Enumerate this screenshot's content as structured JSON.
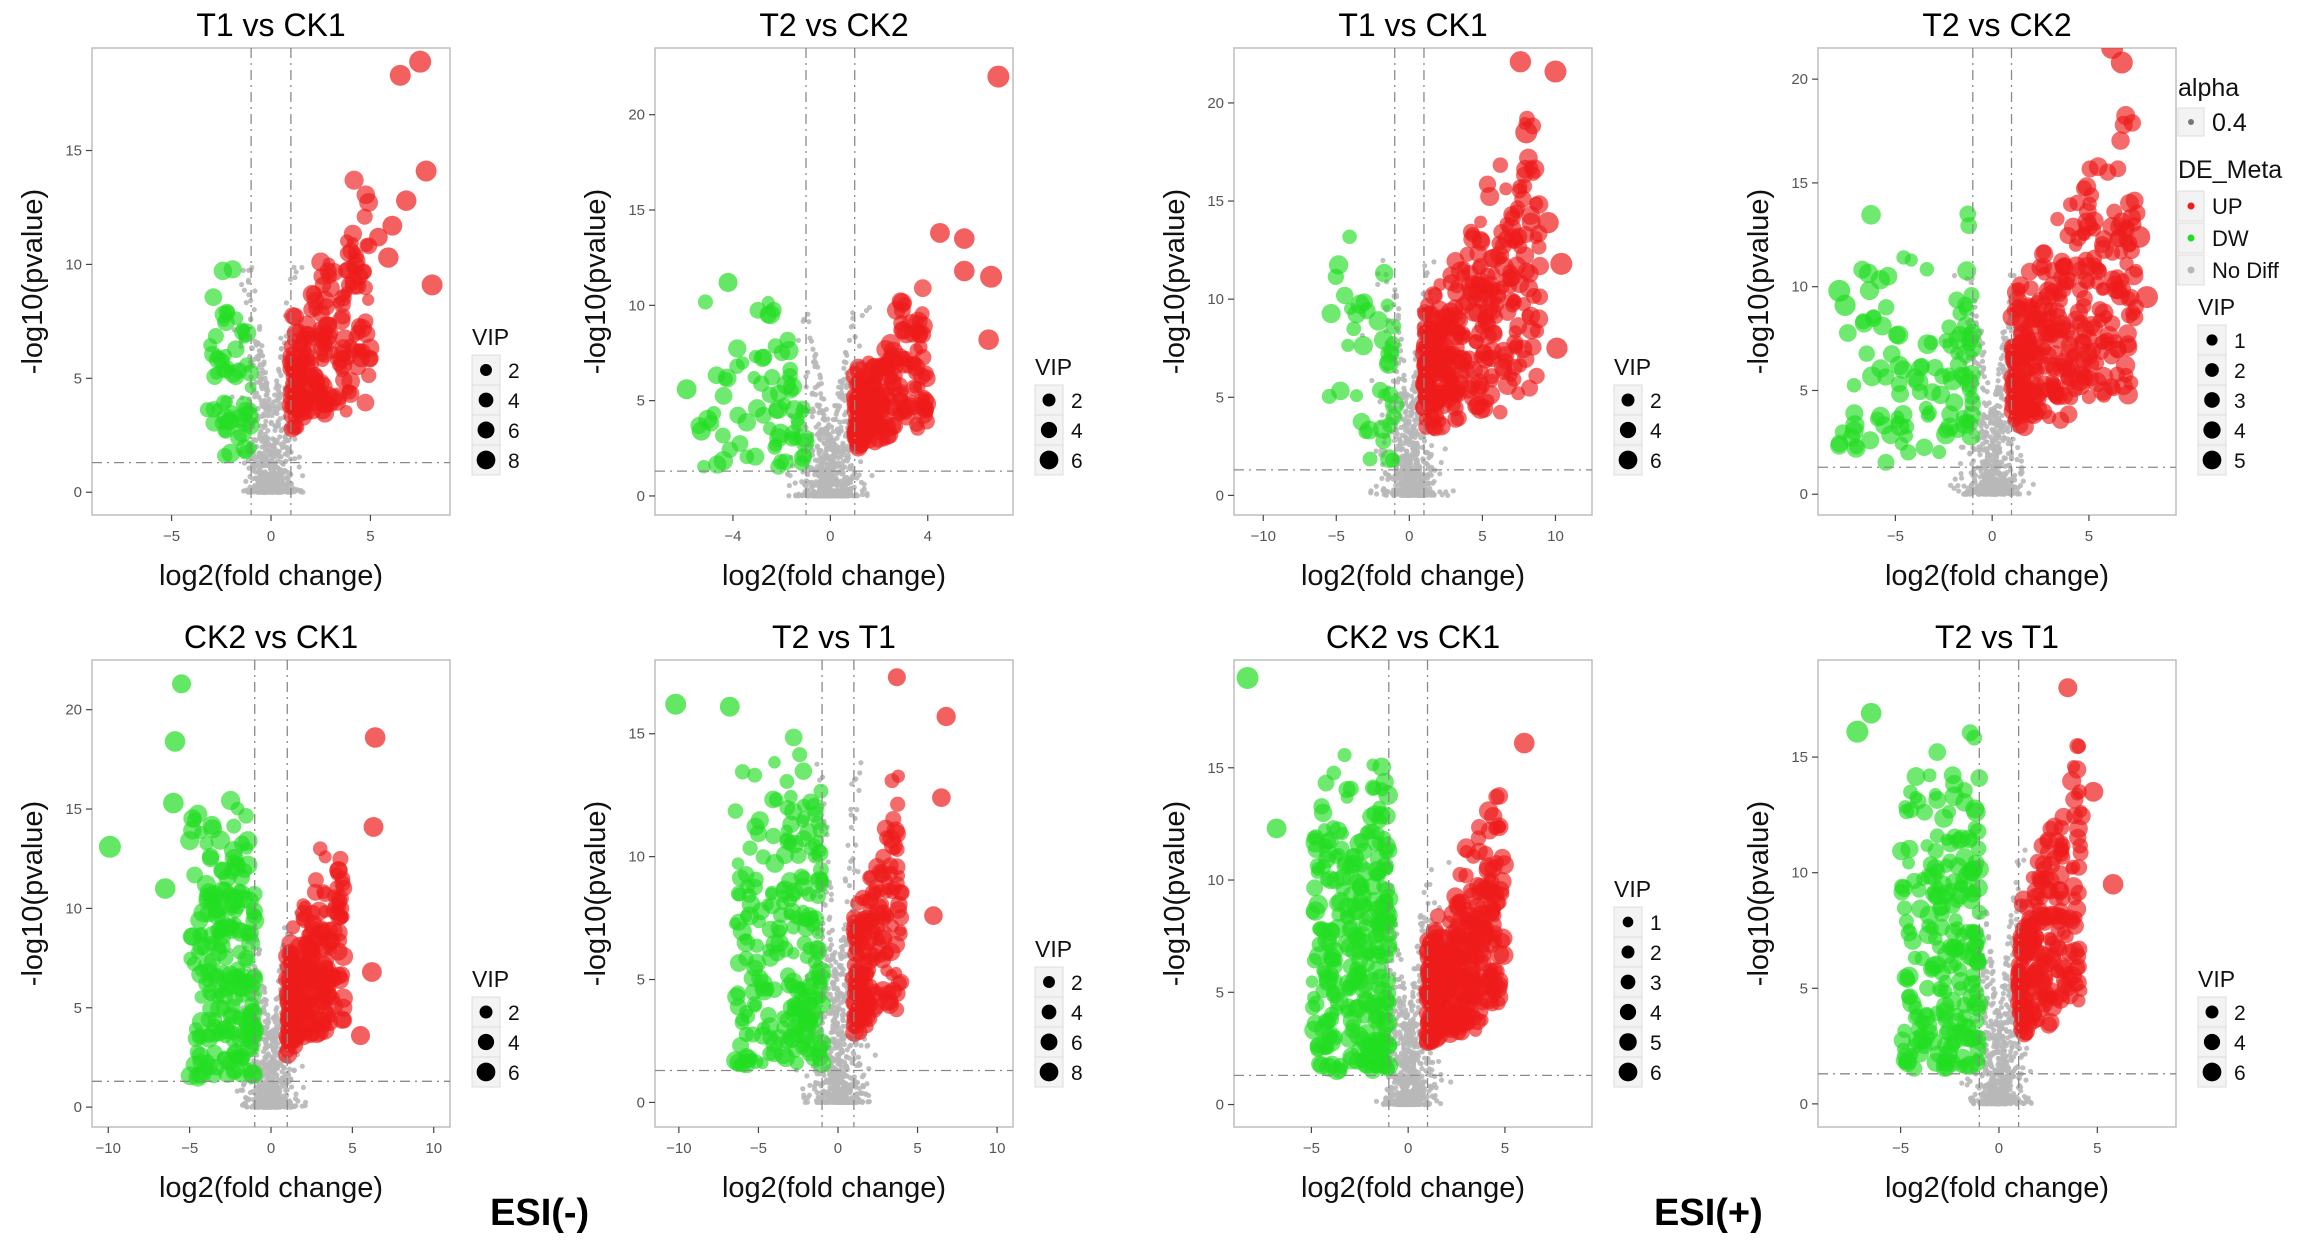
{
  "colors": {
    "up": "#ee1c1c",
    "down": "#22dd22",
    "nodiff": "#b8b8b8",
    "panel_bg": "#ffffff",
    "frame": "#bdbdbd",
    "axis_text": "#555555"
  },
  "legend": {
    "alpha_title": "alpha",
    "alpha_value": "0.4",
    "de_title": "DE_Meta",
    "up": "UP",
    "dw": "DW",
    "nodiff": "No Diff"
  },
  "esi_labels": {
    "neg": "ESI(-)",
    "pos": "ESI(+)"
  },
  "chart_data": [
    {
      "id": "neg_t1_ck1",
      "type": "scatter",
      "title": "T1 vs CK1",
      "xlabel": "log2(fold change)",
      "ylabel": "-log10(pvalue)",
      "xlim": [
        -9,
        9
      ],
      "ylim": [
        -1,
        19.5
      ],
      "xticks": [
        -5,
        0,
        5
      ],
      "yticks": [
        0,
        5,
        10,
        15
      ],
      "pthreshold": 1.3,
      "fcthreshold": 1,
      "vip_legend": {
        "title": "VIP",
        "values": [
          2,
          4,
          6,
          8
        ]
      },
      "vipmax": 8,
      "dist": {
        "seed": 11,
        "n_gray": 650,
        "gray_sx": 0.65,
        "gray_ymax": 10,
        "n_up": 210,
        "up_xr": [
          1,
          5
        ],
        "up_ymax": 15.5,
        "n_down": 60,
        "down_xr": [
          -3.2,
          -1
        ],
        "down_ymax": 10.5
      },
      "highlights": [
        {
          "x": 7.5,
          "y": 18.9,
          "vip": 8
        },
        {
          "x": 6.5,
          "y": 18.3,
          "vip": 7
        },
        {
          "x": 7.8,
          "y": 14.1,
          "vip": 7
        },
        {
          "x": 6.8,
          "y": 12.8,
          "vip": 6.5
        },
        {
          "x": 6.1,
          "y": 11.7,
          "vip": 6
        },
        {
          "x": 5.9,
          "y": 10.3,
          "vip": 6.5
        },
        {
          "x": 8.1,
          "y": 9.1,
          "vip": 7
        },
        {
          "x": 5.4,
          "y": 11.2,
          "vip": 5
        }
      ]
    },
    {
      "id": "neg_t2_ck2",
      "type": "scatter",
      "title": "T2 vs CK2",
      "xlabel": "log2(fold change)",
      "ylabel": "-log10(pvalue)",
      "xlim": [
        -7.2,
        7.5
      ],
      "ylim": [
        -1,
        23.5
      ],
      "xticks": [
        -4,
        0,
        4
      ],
      "yticks": [
        0,
        5,
        10,
        15,
        20
      ],
      "pthreshold": 1.3,
      "fcthreshold": 1,
      "vip_legend": {
        "title": "VIP",
        "values": [
          2,
          4,
          6
        ]
      },
      "vipmax": 6,
      "dist": {
        "seed": 22,
        "n_gray": 650,
        "gray_sx": 0.6,
        "gray_ymax": 10,
        "n_up": 230,
        "up_xr": [
          1,
          4
        ],
        "up_ymax": 13,
        "n_down": 70,
        "down_xr": [
          -5.5,
          -1
        ],
        "down_ymax": 11
      },
      "highlights": [
        {
          "x": 6.9,
          "y": 22,
          "vip": 6
        },
        {
          "x": 6.6,
          "y": 11.5,
          "vip": 6
        },
        {
          "x": 5.5,
          "y": 11.8,
          "vip": 5
        },
        {
          "x": 6.5,
          "y": 8.2,
          "vip": 5
        },
        {
          "x": 5.5,
          "y": 13.5,
          "vip": 5
        },
        {
          "x": 4.5,
          "y": 13.8,
          "vip": 4.5
        },
        {
          "x": -5.9,
          "y": 5.6,
          "vip": 4.5
        },
        {
          "x": -5.3,
          "y": 3.4,
          "vip": 4
        },
        {
          "x": -4.2,
          "y": 11.2,
          "vip": 4
        }
      ]
    },
    {
      "id": "pos_t1_ck1",
      "type": "scatter",
      "title": "T1 vs CK1",
      "xlabel": "log2(fold change)",
      "ylabel": "-log10(pvalue)",
      "xlim": [
        -12,
        12.5
      ],
      "ylim": [
        -1,
        22.8
      ],
      "xticks": [
        -10,
        -5,
        0,
        5,
        10
      ],
      "yticks": [
        0,
        5,
        10,
        15,
        20
      ],
      "pthreshold": 1.3,
      "fcthreshold": 1,
      "vip_legend": {
        "title": "VIP",
        "values": [
          2,
          4,
          6
        ]
      },
      "vipmax": 6,
      "dist": {
        "seed": 33,
        "n_gray": 650,
        "gray_sx": 0.9,
        "gray_ymax": 12,
        "n_up": 330,
        "up_xr": [
          1,
          9
        ],
        "up_ymax": 22,
        "n_down": 40,
        "down_xr": [
          -5.5,
          -1
        ],
        "down_ymax": 13.5
      },
      "highlights": [
        {
          "x": 10,
          "y": 21.6,
          "vip": 6
        },
        {
          "x": 9.5,
          "y": 13.9,
          "vip": 5.5
        },
        {
          "x": 10.4,
          "y": 11.8,
          "vip": 6
        },
        {
          "x": 10.1,
          "y": 7.5,
          "vip": 5.5
        },
        {
          "x": 7.6,
          "y": 22.1,
          "vip": 5.5
        },
        {
          "x": 8,
          "y": 18.5,
          "vip": 6
        }
      ]
    },
    {
      "id": "pos_t2_ck2",
      "type": "scatter",
      "title": "T2 vs CK2",
      "xlabel": "log2(fold change)",
      "ylabel": "-log10(pvalue)",
      "xlim": [
        -9,
        9.5
      ],
      "ylim": [
        -1,
        21.5
      ],
      "xticks": [
        -5,
        0,
        5
      ],
      "yticks": [
        0,
        5,
        10,
        15,
        20
      ],
      "pthreshold": 1.3,
      "fcthreshold": 1,
      "vip_legend": {
        "title": "VIP",
        "values": [
          1,
          2,
          3,
          4,
          5
        ]
      },
      "vipmax": 5,
      "dist": {
        "seed": 44,
        "n_gray": 650,
        "gray_sx": 0.75,
        "gray_ymax": 11,
        "n_up": 330,
        "up_xr": [
          1,
          7.5
        ],
        "up_ymax": 20.5,
        "n_down": 110,
        "down_xr": [
          -8,
          -1
        ],
        "down_ymax": 14
      },
      "highlights": [
        {
          "x": 6.2,
          "y": 21.5,
          "vip": 5
        },
        {
          "x": 6.7,
          "y": 20.8,
          "vip": 5
        },
        {
          "x": 8,
          "y": 9.5,
          "vip": 5
        },
        {
          "x": 7.6,
          "y": 12.4,
          "vip": 5
        },
        {
          "x": -7.9,
          "y": 9.8,
          "vip": 5
        },
        {
          "x": -7.6,
          "y": 9.1,
          "vip": 4.5
        }
      ]
    },
    {
      "id": "neg_ck2_ck1",
      "type": "scatter",
      "title": "CK2 vs CK1",
      "xlabel": "log2(fold change)",
      "ylabel": "-log10(pvalue)",
      "xlim": [
        -11,
        11
      ],
      "ylim": [
        -1,
        22.5
      ],
      "xticks": [
        -10,
        -5,
        0,
        5,
        10
      ],
      "yticks": [
        0,
        5,
        10,
        15,
        20
      ],
      "pthreshold": 1.3,
      "fcthreshold": 1,
      "vip_legend": {
        "title": "VIP",
        "values": [
          2,
          4,
          6
        ]
      },
      "vipmax": 6,
      "dist": {
        "seed": 55,
        "n_gray": 650,
        "gray_sx": 0.8,
        "gray_ymax": 10,
        "n_up": 240,
        "up_xr": [
          1,
          4.5
        ],
        "up_ymax": 17,
        "n_down": 220,
        "down_xr": [
          -5,
          -1
        ],
        "down_ymax": 16.5
      },
      "highlights": [
        {
          "x": -9.9,
          "y": 13.1,
          "vip": 6
        },
        {
          "x": -6.5,
          "y": 11,
          "vip": 5
        },
        {
          "x": -5.5,
          "y": 21.3,
          "vip": 4
        },
        {
          "x": -5.9,
          "y": 18.4,
          "vip": 5
        },
        {
          "x": -6,
          "y": 15.3,
          "vip": 5
        },
        {
          "x": 6.4,
          "y": 18.6,
          "vip": 5
        },
        {
          "x": 6.3,
          "y": 14.1,
          "vip": 4.5
        },
        {
          "x": 6.2,
          "y": 6.8,
          "vip": 4.5
        },
        {
          "x": 5.5,
          "y": 3.6,
          "vip": 4
        }
      ]
    },
    {
      "id": "neg_t2_t1",
      "type": "scatter",
      "title": "T2 vs T1",
      "xlabel": "log2(fold change)",
      "ylabel": "-log10(pvalue)",
      "xlim": [
        -11.5,
        11
      ],
      "ylim": [
        -1,
        18
      ],
      "xticks": [
        -10,
        -5,
        0,
        5,
        10
      ],
      "yticks": [
        0,
        5,
        10,
        15
      ],
      "pthreshold": 1.3,
      "fcthreshold": 1,
      "vip_legend": {
        "title": "VIP",
        "values": [
          2,
          4,
          6,
          8
        ]
      },
      "vipmax": 8,
      "dist": {
        "seed": 66,
        "n_gray": 700,
        "gray_sx": 0.8,
        "gray_ymax": 14,
        "n_up": 170,
        "up_xr": [
          1,
          4
        ],
        "up_ymax": 16.5,
        "n_down": 230,
        "down_xr": [
          -6.5,
          -1
        ],
        "down_ymax": 15.5
      },
      "highlights": [
        {
          "x": -10.2,
          "y": 16.2,
          "vip": 7
        },
        {
          "x": -6.8,
          "y": 16.1,
          "vip": 6
        },
        {
          "x": 6.8,
          "y": 15.7,
          "vip": 5.5
        },
        {
          "x": 6.5,
          "y": 12.4,
          "vip": 5
        },
        {
          "x": 6,
          "y": 7.6,
          "vip": 5
        },
        {
          "x": 3.7,
          "y": 17.3,
          "vip": 4.5
        }
      ]
    },
    {
      "id": "pos_ck2_ck1",
      "type": "scatter",
      "title": "CK2 vs CK1",
      "xlabel": "log2(fold change)",
      "ylabel": "-log10(pvalue)",
      "xlim": [
        -9,
        9.5
      ],
      "ylim": [
        -1,
        19.8
      ],
      "xticks": [
        -5,
        0,
        5
      ],
      "yticks": [
        0,
        5,
        10,
        15
      ],
      "pthreshold": 1.3,
      "fcthreshold": 1,
      "vip_legend": {
        "title": "VIP",
        "values": [
          1,
          2,
          3,
          4,
          5,
          6
        ]
      },
      "vipmax": 6,
      "dist": {
        "seed": 77,
        "n_gray": 700,
        "gray_sx": 0.7,
        "gray_ymax": 11,
        "n_up": 380,
        "up_xr": [
          1,
          5
        ],
        "up_ymax": 15.5,
        "n_down": 300,
        "down_xr": [
          -5,
          -1
        ],
        "down_ymax": 16
      },
      "highlights": [
        {
          "x": -8.3,
          "y": 19,
          "vip": 6
        },
        {
          "x": -6.8,
          "y": 12.3,
          "vip": 4.5
        },
        {
          "x": 6,
          "y": 16.1,
          "vip": 5
        }
      ]
    },
    {
      "id": "pos_t2_t1",
      "type": "scatter",
      "title": "T2 vs T1",
      "xlabel": "log2(fold change)",
      "ylabel": "-log10(pvalue)",
      "xlim": [
        -9.2,
        9
      ],
      "ylim": [
        -1,
        19.2
      ],
      "xticks": [
        -5,
        0,
        5
      ],
      "yticks": [
        0,
        5,
        10,
        15
      ],
      "pthreshold": 1.3,
      "fcthreshold": 1,
      "vip_legend": {
        "title": "VIP",
        "values": [
          2,
          4,
          6
        ]
      },
      "vipmax": 6,
      "dist": {
        "seed": 88,
        "n_gray": 650,
        "gray_sx": 0.65,
        "gray_ymax": 11,
        "n_up": 230,
        "up_xr": [
          1,
          4.2
        ],
        "up_ymax": 17.5,
        "n_down": 230,
        "down_xr": [
          -5,
          -1
        ],
        "down_ymax": 16.5
      },
      "highlights": [
        {
          "x": -7.2,
          "y": 16.1,
          "vip": 6
        },
        {
          "x": -6.5,
          "y": 16.9,
          "vip": 5
        },
        {
          "x": 5.8,
          "y": 9.5,
          "vip": 5
        },
        {
          "x": 4.8,
          "y": 13.5,
          "vip": 4.5
        },
        {
          "x": 3.5,
          "y": 18,
          "vip": 4
        }
      ]
    }
  ]
}
